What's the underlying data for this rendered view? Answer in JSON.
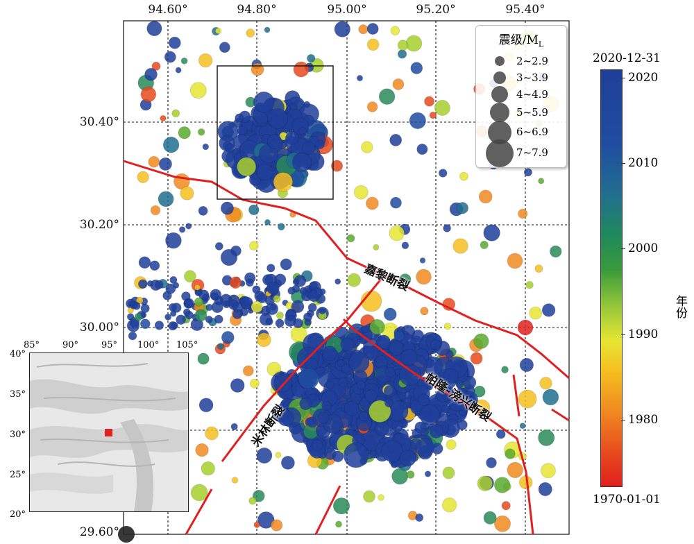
{
  "map": {
    "top_ticks": [
      "94.60°",
      "94.80°",
      "95.00°",
      "95.20°",
      "95.40°"
    ],
    "left_ticks": [
      "30.40°",
      "30.20°",
      "30.00°",
      "29.60°"
    ],
    "fault_labels": [
      "嘉黎断裂",
      "帕隆-滂兴断裂",
      "米林断裂"
    ]
  },
  "legend": {
    "title": "震级/M",
    "title_sub": "L",
    "items": [
      "2~2.9",
      "3~3.9",
      "4~4.9",
      "5~5.9",
      "6~6.9",
      "7~7.9"
    ]
  },
  "colorbar": {
    "title": "年份",
    "top_label": "2020-12-31",
    "bottom_label": "1970-01-01",
    "ticks": [
      "2020",
      "2010",
      "2000",
      "1990",
      "1980"
    ]
  },
  "inset": {
    "x_ticks": [
      "85°",
      "90°",
      "95°",
      "100°",
      "105°"
    ],
    "y_ticks": [
      "40°",
      "35°",
      "30°",
      "25°",
      "20°"
    ]
  },
  "colors": {
    "fault": "#e02020",
    "recent": "#1f3f9a",
    "marker_red": "#e02020"
  }
}
